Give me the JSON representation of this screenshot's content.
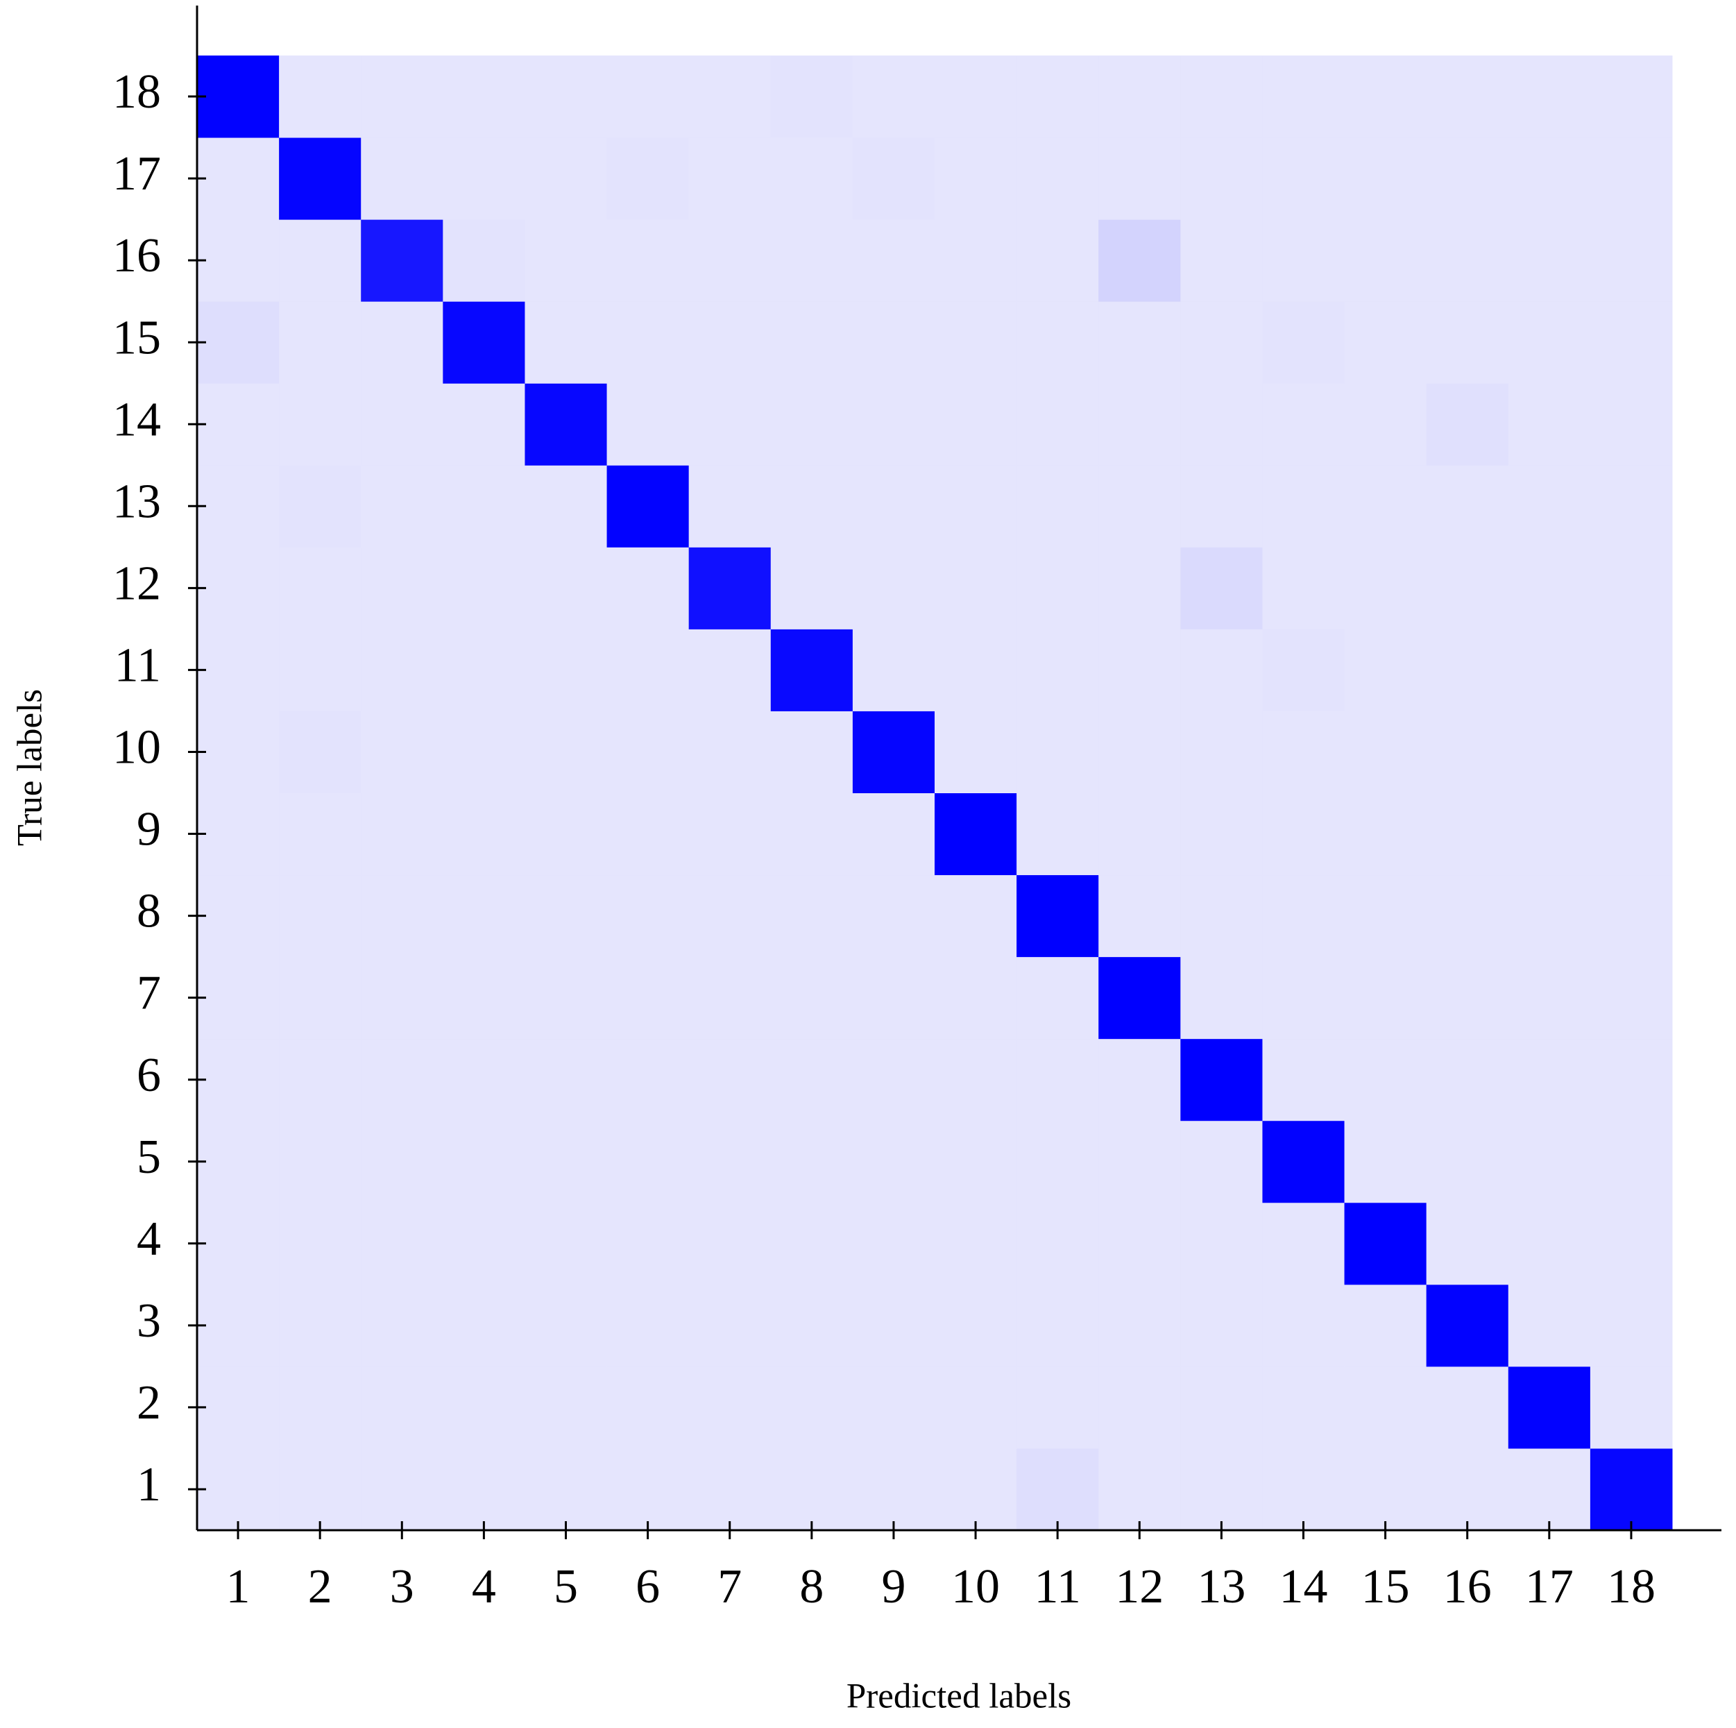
{
  "chart_data": {
    "type": "heatmap",
    "xlabel": "Predicted labels",
    "ylabel": "True labels",
    "x_categories": [
      1,
      2,
      3,
      4,
      5,
      6,
      7,
      8,
      9,
      10,
      11,
      12,
      13,
      14,
      15,
      16,
      17,
      18
    ],
    "y_categories": [
      1,
      2,
      3,
      4,
      5,
      6,
      7,
      8,
      9,
      10,
      11,
      12,
      13,
      14,
      15,
      16,
      17,
      18
    ],
    "colormap": [
      "#e5e5fd",
      "#0000ff"
    ],
    "values": [
      [
        0,
        0,
        0,
        0,
        0,
        0,
        0,
        0,
        0,
        0,
        0.03,
        0,
        0,
        0,
        0,
        0,
        0,
        0.97
      ],
      [
        0,
        0,
        0,
        0,
        0,
        0,
        0,
        0,
        0,
        0,
        0,
        0,
        0,
        0,
        0,
        0,
        0.99,
        0
      ],
      [
        0,
        0,
        0,
        0,
        0,
        0,
        0,
        0,
        0,
        0,
        0,
        0,
        0,
        0,
        0,
        0.99,
        0,
        0
      ],
      [
        0,
        0,
        0,
        0,
        0,
        0,
        0,
        0,
        0,
        0,
        0,
        0,
        0,
        0,
        1,
        0,
        0,
        0
      ],
      [
        0,
        0,
        0,
        0,
        0,
        0,
        0,
        0,
        0,
        0,
        0,
        0,
        0,
        0.99,
        0,
        0,
        0,
        0
      ],
      [
        0,
        0,
        0,
        0,
        0,
        0,
        0,
        0,
        0,
        0,
        0,
        0,
        1,
        0,
        0,
        0,
        0,
        0
      ],
      [
        0,
        0,
        0,
        0,
        0,
        0,
        0,
        0,
        0,
        0,
        0,
        1,
        0,
        0,
        0,
        0,
        0,
        0
      ],
      [
        0,
        0,
        0,
        0,
        0,
        0,
        0,
        0,
        0,
        0,
        1,
        0,
        0,
        0,
        0,
        0,
        0,
        0
      ],
      [
        0,
        0,
        0,
        0,
        0,
        0,
        0,
        0,
        0,
        1,
        0,
        0,
        0,
        0,
        0,
        0,
        0,
        0
      ],
      [
        0,
        0.01,
        0,
        0,
        0,
        0,
        0,
        0,
        0.98,
        0,
        0,
        0,
        0,
        0,
        0,
        0,
        0,
        0
      ],
      [
        0,
        0,
        0,
        0,
        0,
        0,
        0,
        0.96,
        0,
        0,
        0,
        0,
        0,
        0.01,
        0,
        0,
        0,
        0
      ],
      [
        0,
        0,
        0,
        0,
        0,
        0,
        0.93,
        0,
        0,
        0,
        0,
        0,
        0.05,
        0,
        0,
        0,
        0,
        0
      ],
      [
        0,
        0.01,
        0,
        0,
        0,
        0.99,
        0,
        0,
        0,
        0,
        0,
        0,
        0,
        0,
        0,
        0,
        0,
        0
      ],
      [
        0,
        0,
        0,
        0,
        0.97,
        0,
        0,
        0,
        0,
        0,
        0,
        0,
        0,
        0,
        0,
        0.02,
        0,
        0
      ],
      [
        0.03,
        0,
        0,
        0.97,
        0,
        0,
        0,
        0,
        0,
        0,
        0,
        0,
        0,
        0.01,
        0,
        0,
        0,
        0
      ],
      [
        0,
        0,
        0.9,
        0.01,
        0,
        0,
        0,
        0,
        0,
        0,
        0,
        0.08,
        0,
        0,
        0,
        0,
        0,
        0
      ],
      [
        0,
        0.98,
        0,
        0,
        0,
        0.01,
        0,
        0,
        0.01,
        0,
        0,
        0,
        0,
        0,
        0,
        0,
        0,
        0
      ],
      [
        0.99,
        0,
        0,
        0,
        0,
        0,
        0,
        0.01,
        0,
        0,
        0,
        0,
        0,
        0,
        0,
        0,
        0,
        0
      ]
    ]
  }
}
